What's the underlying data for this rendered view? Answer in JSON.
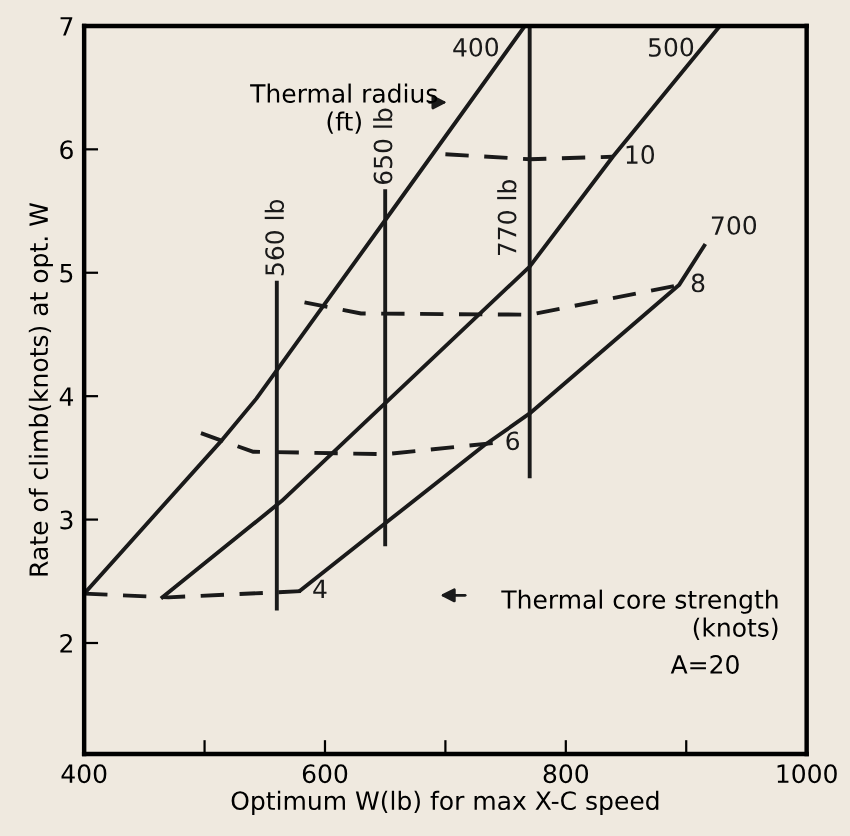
{
  "chart_data": {
    "type": "line",
    "xlabel": "Optimum W(lb) for max X-C speed",
    "ylabel": "Rate of climb(knots) at opt. W",
    "xlim": [
      400,
      1000
    ],
    "ylim": [
      1.1,
      7
    ],
    "xticks": [
      400,
      {
        "value": 500,
        "label": null
      },
      600,
      {
        "value": 700,
        "label": null
      },
      800,
      {
        "value": 900,
        "label": null
      },
      1000
    ],
    "yticks": [
      2,
      3,
      4,
      5,
      6,
      7
    ],
    "grid": false,
    "marker": "none",
    "series": [
      {
        "name": "400",
        "color": "#1a1a1a",
        "line_style": "solid",
        "x": [
          400,
          515,
          543,
          654,
          766
        ],
        "values": [
          2.4,
          3.65,
          3.98,
          5.48,
          7
        ]
      },
      {
        "name": "500",
        "color": "#1a1a1a",
        "line_style": "solid",
        "x": [
          465,
          564,
          654,
          770,
          839,
          928
        ],
        "values": [
          2.37,
          3.15,
          3.98,
          5.05,
          5.94,
          7
        ]
      },
      {
        "name": "700",
        "color": "#1a1a1a",
        "line_style": "solid",
        "x": [
          580,
          654,
          732,
          770,
          894,
          915
        ],
        "values": [
          2.43,
          3.0,
          3.6,
          3.86,
          4.9,
          5.22
        ]
      },
      {
        "name": "4",
        "color": "#1a1a1a",
        "line_style": "dashed",
        "x": [
          400,
          470,
          580
        ],
        "values": [
          2.4,
          2.37,
          2.42
        ]
      },
      {
        "name": "6",
        "color": "#1a1a1a",
        "line_style": "dashed",
        "x": [
          497,
          540,
          650,
          740
        ],
        "values": [
          3.7,
          3.55,
          3.53,
          3.62
        ]
      },
      {
        "name": "8",
        "color": "#1a1a1a",
        "line_style": "dashed",
        "x": [
          583,
          630,
          770,
          894
        ],
        "values": [
          4.76,
          4.67,
          4.66,
          4.9
        ]
      },
      {
        "name": "10",
        "color": "#1a1a1a",
        "line_style": "dashed",
        "x": [
          700,
          770,
          839
        ],
        "values": [
          5.96,
          5.92,
          5.94
        ]
      },
      {
        "name": "560 lb",
        "color": "#1a1a1a",
        "line_style": "solid",
        "x": [
          560,
          560
        ],
        "values": [
          2.28,
          4.92
        ]
      },
      {
        "name": "650 lb",
        "color": "#1a1a1a",
        "line_style": "solid",
        "x": [
          650,
          650
        ],
        "values": [
          2.8,
          5.66
        ]
      },
      {
        "name": "770 lb",
        "color": "#1a1a1a",
        "line_style": "solid",
        "x": [
          770,
          770
        ],
        "values": [
          3.35,
          7
        ]
      }
    ],
    "annotations": [
      "Thermal radius\n(ft)",
      "Thermal core strength\n(knots)",
      "A=20"
    ]
  }
}
